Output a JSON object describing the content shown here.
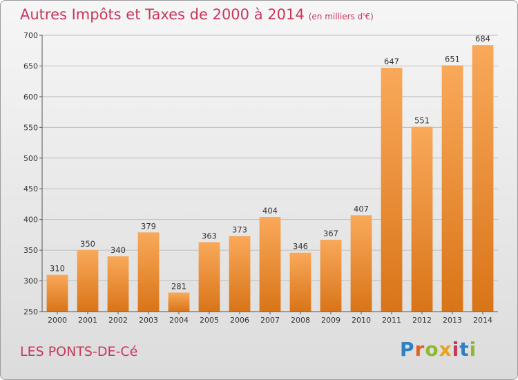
{
  "title": "Autres Impôts et Taxes de 2000 à 2014",
  "subtitle": "(en milliers d'€)",
  "place": "LES PONTS-DE-Cé",
  "logo": {
    "text": "Proxiti",
    "colors": [
      "#2f7fc1",
      "#e65f25",
      "#8cb92e",
      "#e8a21c",
      "#c8365b",
      "#2f7fc1",
      "#8cb92e"
    ]
  },
  "colors": {
    "bar_top": "#f9a95a",
    "bar_bottom": "#d97418",
    "title": "#c8365b",
    "grid": "#bdbdbd"
  },
  "chart_data": {
    "type": "bar",
    "categories": [
      "2000",
      "2001",
      "2002",
      "2003",
      "2004",
      "2005",
      "2006",
      "2007",
      "2008",
      "2009",
      "2010",
      "2011",
      "2012",
      "2013",
      "2014"
    ],
    "values": [
      310,
      350,
      340,
      379,
      281,
      363,
      373,
      404,
      346,
      367,
      407,
      647,
      551,
      651,
      684
    ],
    "ylim": [
      250,
      700
    ],
    "yticks": [
      250,
      300,
      350,
      400,
      450,
      500,
      550,
      600,
      650,
      700
    ],
    "grid": true
  }
}
